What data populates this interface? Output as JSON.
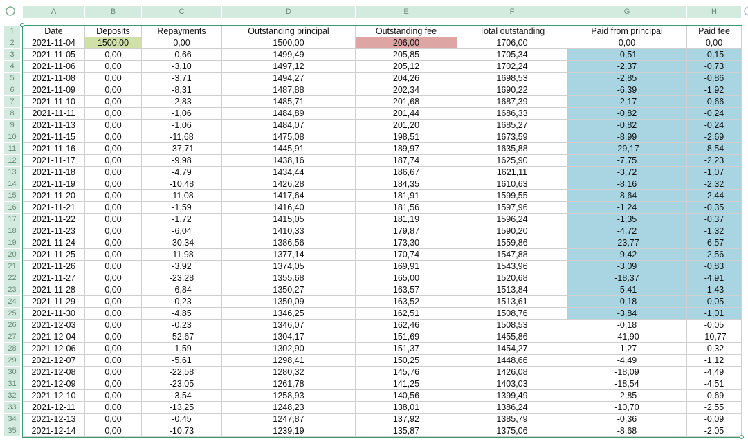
{
  "sheet": {
    "column_letters": [
      "A",
      "B",
      "C",
      "D",
      "E",
      "F",
      "G",
      "H"
    ],
    "row_numbers": [
      1,
      2,
      3,
      4,
      5,
      6,
      7,
      8,
      9,
      10,
      11,
      12,
      13,
      14,
      15,
      16,
      17,
      18,
      19,
      20,
      21,
      22,
      23,
      24,
      25,
      26,
      27,
      28,
      29,
      30,
      31,
      32,
      33,
      34,
      35
    ],
    "header": [
      "Date",
      "Deposits",
      "Repayments",
      "Outstanding principal",
      "Outstanding fee",
      "Total outstanding",
      "Paid from principal",
      "Paid fee"
    ],
    "rows": [
      [
        "2021-11-04",
        "1500,00",
        "0,00",
        "1500,00",
        "206,00",
        "1706,00",
        "0,00",
        "0,00"
      ],
      [
        "2021-11-05",
        "0,00",
        "-0,66",
        "1499,49",
        "205,85",
        "1705,34",
        "-0,51",
        "-0,15"
      ],
      [
        "2021-11-06",
        "0,00",
        "-3,10",
        "1497,12",
        "205,12",
        "1702,24",
        "-2,37",
        "-0,73"
      ],
      [
        "2021-11-08",
        "0,00",
        "-3,71",
        "1494,27",
        "204,26",
        "1698,53",
        "-2,85",
        "-0,86"
      ],
      [
        "2021-11-09",
        "0,00",
        "-8,31",
        "1487,88",
        "202,34",
        "1690,22",
        "-6,39",
        "-1,92"
      ],
      [
        "2021-11-10",
        "0,00",
        "-2,83",
        "1485,71",
        "201,68",
        "1687,39",
        "-2,17",
        "-0,66"
      ],
      [
        "2021-11-11",
        "0,00",
        "-1,06",
        "1484,89",
        "201,44",
        "1686,33",
        "-0,82",
        "-0,24"
      ],
      [
        "2021-11-13",
        "0,00",
        "-1,06",
        "1484,07",
        "201,20",
        "1685,27",
        "-0,82",
        "-0,24"
      ],
      [
        "2021-11-15",
        "0,00",
        "-11,68",
        "1475,08",
        "198,51",
        "1673,59",
        "-8,99",
        "-2,69"
      ],
      [
        "2021-11-16",
        "0,00",
        "-37,71",
        "1445,91",
        "189,97",
        "1635,88",
        "-29,17",
        "-8,54"
      ],
      [
        "2021-11-17",
        "0,00",
        "-9,98",
        "1438,16",
        "187,74",
        "1625,90",
        "-7,75",
        "-2,23"
      ],
      [
        "2021-11-18",
        "0,00",
        "-4,79",
        "1434,44",
        "186,67",
        "1621,11",
        "-3,72",
        "-1,07"
      ],
      [
        "2021-11-19",
        "0,00",
        "-10,48",
        "1426,28",
        "184,35",
        "1610,63",
        "-8,16",
        "-2,32"
      ],
      [
        "2021-11-20",
        "0,00",
        "-11,08",
        "1417,64",
        "181,91",
        "1599,55",
        "-8,64",
        "-2,44"
      ],
      [
        "2021-11-21",
        "0,00",
        "-1,59",
        "1416,40",
        "181,56",
        "1597,96",
        "-1,24",
        "-0,35"
      ],
      [
        "2021-11-22",
        "0,00",
        "-1,72",
        "1415,05",
        "181,19",
        "1596,24",
        "-1,35",
        "-0,37"
      ],
      [
        "2021-11-23",
        "0,00",
        "-6,04",
        "1410,33",
        "179,87",
        "1590,20",
        "-4,72",
        "-1,32"
      ],
      [
        "2021-11-24",
        "0,00",
        "-30,34",
        "1386,56",
        "173,30",
        "1559,86",
        "-23,77",
        "-6,57"
      ],
      [
        "2021-11-25",
        "0,00",
        "-11,98",
        "1377,14",
        "170,74",
        "1547,88",
        "-9,42",
        "-2,56"
      ],
      [
        "2021-11-26",
        "0,00",
        "-3,92",
        "1374,05",
        "169,91",
        "1543,96",
        "-3,09",
        "-0,83"
      ],
      [
        "2021-11-27",
        "0,00",
        "-23,28",
        "1355,68",
        "165,00",
        "1520,68",
        "-18,37",
        "-4,91"
      ],
      [
        "2021-11-28",
        "0,00",
        "-6,84",
        "1350,27",
        "163,57",
        "1513,84",
        "-5,41",
        "-1,43"
      ],
      [
        "2021-11-29",
        "0,00",
        "-0,23",
        "1350,09",
        "163,52",
        "1513,61",
        "-0,18",
        "-0,05"
      ],
      [
        "2021-11-30",
        "0,00",
        "-4,85",
        "1346,25",
        "162,51",
        "1508,76",
        "-3,84",
        "-1,01"
      ],
      [
        "2021-12-03",
        "0,00",
        "-0,23",
        "1346,07",
        "162,46",
        "1508,53",
        "-0,18",
        "-0,05"
      ],
      [
        "2021-12-04",
        "0,00",
        "-52,67",
        "1304,17",
        "151,69",
        "1455,86",
        "-41,90",
        "-10,77"
      ],
      [
        "2021-12-06",
        "0,00",
        "-1,59",
        "1302,90",
        "151,37",
        "1454,27",
        "-1,27",
        "-0,32"
      ],
      [
        "2021-12-07",
        "0,00",
        "-5,61",
        "1298,41",
        "150,25",
        "1448,66",
        "-4,49",
        "-1,12"
      ],
      [
        "2021-12-08",
        "0,00",
        "-22,58",
        "1280,32",
        "145,76",
        "1426,08",
        "-18,09",
        "-4,49"
      ],
      [
        "2021-12-09",
        "0,00",
        "-23,05",
        "1261,78",
        "141,25",
        "1403,03",
        "-18,54",
        "-4,51"
      ],
      [
        "2021-12-10",
        "0,00",
        "-3,54",
        "1258,93",
        "140,56",
        "1399,49",
        "-2,85",
        "-0,69"
      ],
      [
        "2021-12-11",
        "0,00",
        "-13,25",
        "1248,23",
        "138,01",
        "1386,24",
        "-10,70",
        "-2,55"
      ],
      [
        "2021-12-13",
        "0,00",
        "-0,45",
        "1247,87",
        "137,92",
        "1385,79",
        "-0,36",
        "-0,09"
      ],
      [
        "2021-12-14",
        "0,00",
        "-10,73",
        "1239,19",
        "135,87",
        "1375,06",
        "-8,68",
        "-2,05"
      ]
    ]
  }
}
